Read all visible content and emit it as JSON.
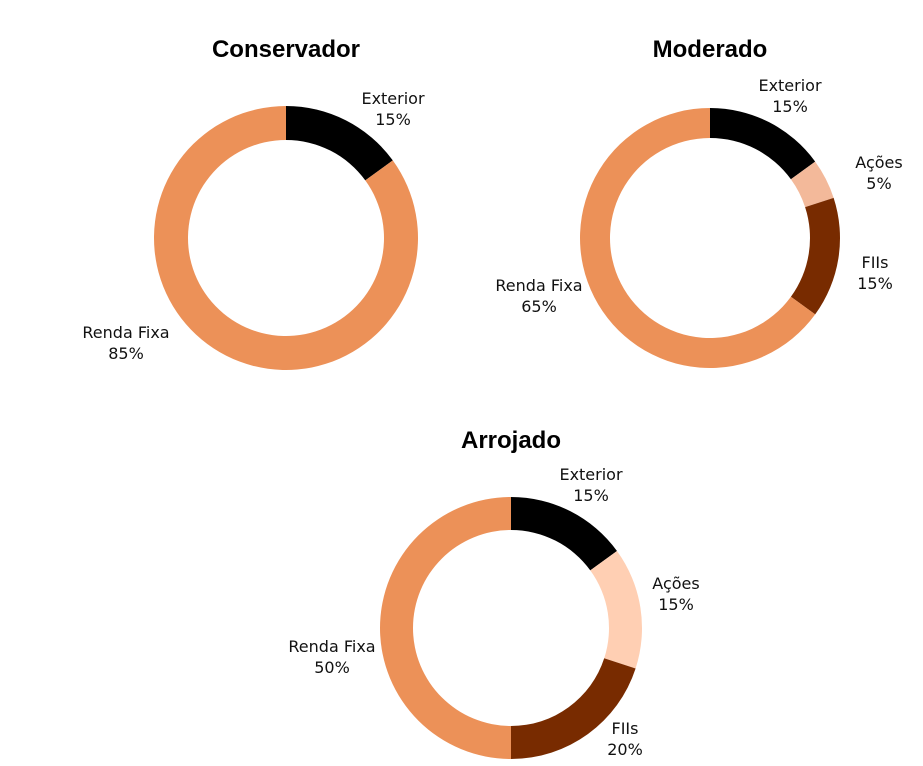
{
  "chart_data": [
    {
      "type": "pie",
      "variant": "donut",
      "title": "Conservador",
      "slices": [
        {
          "name": "Exterior",
          "value": 15,
          "label": "15%",
          "color": "#000000"
        },
        {
          "name": "Renda Fixa",
          "value": 85,
          "label": "85%",
          "color": "#EC9158"
        }
      ]
    },
    {
      "type": "pie",
      "variant": "donut",
      "title": "Moderado",
      "slices": [
        {
          "name": "Exterior",
          "value": 15,
          "label": "15%",
          "color": "#000000"
        },
        {
          "name": "Ações",
          "value": 5,
          "label": "5%",
          "color": "#F3B99A"
        },
        {
          "name": "FIIs",
          "value": 15,
          "label": "15%",
          "color": "#782B00"
        },
        {
          "name": "Renda Fixa",
          "value": 65,
          "label": "65%",
          "color": "#EC9158"
        }
      ]
    },
    {
      "type": "pie",
      "variant": "donut",
      "title": "Arrojado",
      "slices": [
        {
          "name": "Exterior",
          "value": 15,
          "label": "15%",
          "color": "#000000"
        },
        {
          "name": "Ações",
          "value": 15,
          "label": "15%",
          "color": "#FFCFB3"
        },
        {
          "name": "FIIs",
          "value": 20,
          "label": "20%",
          "color": "#782B00"
        },
        {
          "name": "Renda Fixa",
          "value": 50,
          "label": "50%",
          "color": "#EC9158"
        }
      ]
    }
  ]
}
